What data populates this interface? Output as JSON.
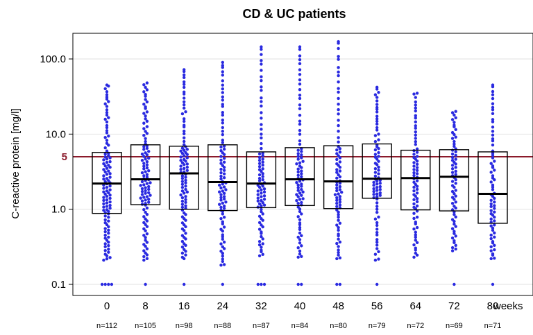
{
  "chart_data": {
    "type": "box-dot",
    "title": "CD & UC patients",
    "ylabel": "C-reactive protein [mg/l]",
    "xlabel": "weeks",
    "yscale": "log",
    "ylim": [
      0.075,
      300
    ],
    "yticks": [
      {
        "value": 0.1,
        "label": "0.1"
      },
      {
        "value": 1,
        "label": "1.0"
      },
      {
        "value": 10,
        "label": "10.0"
      },
      {
        "value": 100,
        "label": "100.0"
      }
    ],
    "grid": true,
    "reference_line": {
      "value": 5,
      "label": "5",
      "color": "#8b1a2b"
    },
    "point_color": "#2a2ae0",
    "categories": [
      "0",
      "8",
      "16",
      "24",
      "32",
      "40",
      "48",
      "56",
      "64",
      "72",
      "80"
    ],
    "n_labels": [
      "n=112",
      "n=105",
      "n=98",
      "n=88",
      "n=87",
      "n=84",
      "n=80",
      "n=79",
      "n=72",
      "n=69",
      "n=71"
    ],
    "n": [
      112,
      105,
      98,
      88,
      87,
      84,
      80,
      79,
      72,
      69,
      71
    ],
    "boxes": [
      {
        "q1": 0.88,
        "median": 2.2,
        "q3": 5.7
      },
      {
        "q1": 1.15,
        "median": 2.5,
        "q3": 7.2
      },
      {
        "q1": 1.0,
        "median": 3.0,
        "q3": 6.9
      },
      {
        "q1": 0.96,
        "median": 2.3,
        "q3": 7.2
      },
      {
        "q1": 1.05,
        "median": 2.2,
        "q3": 5.8
      },
      {
        "q1": 1.12,
        "median": 2.5,
        "q3": 6.6
      },
      {
        "q1": 1.02,
        "median": 2.35,
        "q3": 7.0
      },
      {
        "q1": 1.4,
        "median": 2.55,
        "q3": 7.4
      },
      {
        "q1": 0.98,
        "median": 2.6,
        "q3": 6.1
      },
      {
        "q1": 0.95,
        "median": 2.7,
        "q3": 6.2
      },
      {
        "q1": 0.65,
        "median": 1.6,
        "q3": 5.8
      }
    ],
    "extremes": [
      {
        "max": 45,
        "min_nonfloor": 0.21,
        "floor_count": 4
      },
      {
        "max": 48,
        "min_nonfloor": 0.21,
        "floor_count": 1
      },
      {
        "max": 72,
        "min_nonfloor": 0.22,
        "floor_count": 1
      },
      {
        "max": 90,
        "min_nonfloor": 0.18,
        "floor_count": 1
      },
      {
        "max": 145,
        "min_nonfloor": 0.24,
        "floor_count": 3
      },
      {
        "max": 145,
        "min_nonfloor": 0.23,
        "floor_count": 2
      },
      {
        "max": 170,
        "min_nonfloor": 0.22,
        "floor_count": 2
      },
      {
        "max": 42,
        "min_nonfloor": 0.21,
        "floor_count": 1
      },
      {
        "max": 35,
        "min_nonfloor": 0.23,
        "floor_count": 0
      },
      {
        "max": 20,
        "min_nonfloor": 0.28,
        "floor_count": 1
      },
      {
        "max": 45,
        "min_nonfloor": 0.22,
        "floor_count": 1
      }
    ],
    "floor_value": 0.1
  }
}
